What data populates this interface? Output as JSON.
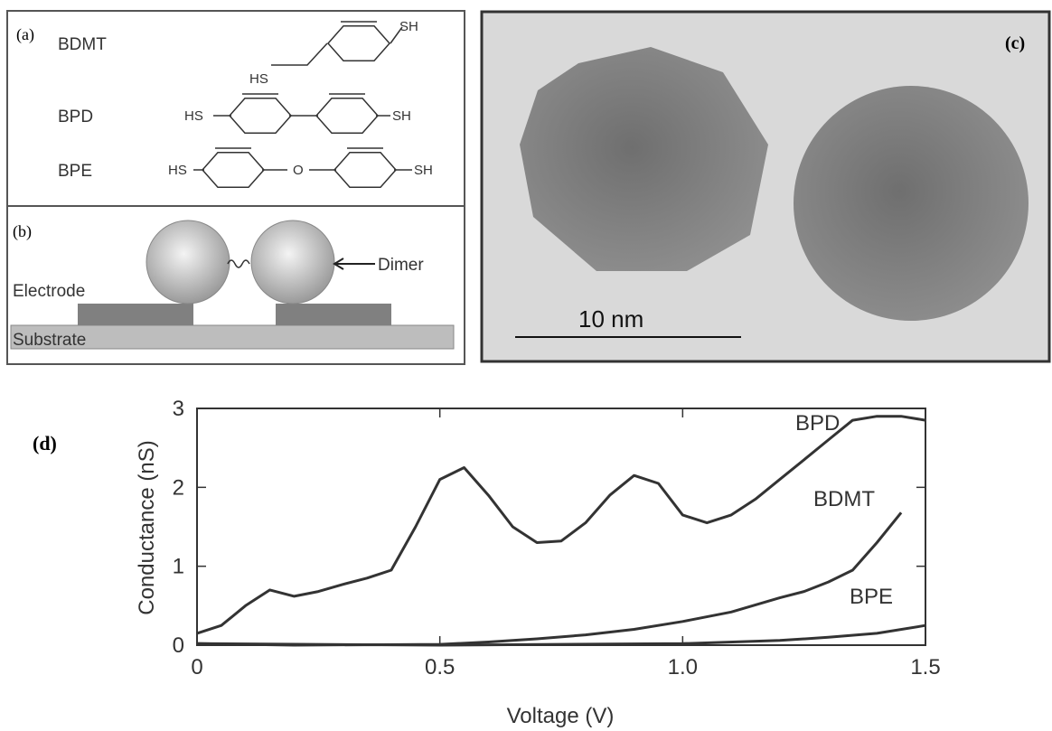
{
  "panel_a": {
    "label": "(a)",
    "molecules": [
      "BDMT",
      "BPD",
      "BPE"
    ],
    "groups": {
      "bdmt_sh": "SH",
      "bdmt_hs": "HS",
      "bpd_hs": "HS",
      "bpd_sh": "SH",
      "bpe_hs": "HS",
      "bpe_o": "O",
      "bpe_sh": "SH"
    }
  },
  "panel_b": {
    "label": "(b)",
    "dimer": "Dimer",
    "electrode": "Electrode",
    "substrate": "Substrate"
  },
  "panel_c": {
    "label": "(c)",
    "scale": "10 nm"
  },
  "panel_d": {
    "label": "(d)"
  },
  "chart_data": {
    "type": "line",
    "xlabel": "Voltage (V)",
    "ylabel": "Conductance (nS)",
    "xlim": [
      0,
      1.5
    ],
    "ylim": [
      0,
      3
    ],
    "xticks": [
      0,
      0.5,
      {
        "value": 1,
        "label": "1.0"
      },
      1.5
    ],
    "yticks": [
      0,
      1,
      2,
      3
    ],
    "series": [
      {
        "name": "BPD",
        "color": "#333333",
        "x": [
          0,
          0.05,
          0.1,
          0.15,
          0.2,
          0.25,
          0.3,
          0.35,
          0.4,
          0.45,
          0.5,
          0.55,
          0.6,
          0.65,
          0.7,
          0.75,
          0.8,
          0.85,
          0.9,
          0.95,
          1.0,
          1.05,
          1.1,
          1.15,
          1.2,
          1.25,
          1.3,
          1.35,
          1.4,
          1.45,
          1.5
        ],
        "values": [
          0.15,
          0.25,
          0.5,
          0.7,
          0.62,
          0.68,
          0.77,
          0.85,
          0.95,
          1.5,
          2.1,
          2.25,
          1.9,
          1.5,
          1.3,
          1.32,
          1.55,
          1.9,
          2.15,
          2.05,
          1.65,
          1.55,
          1.65,
          1.85,
          2.1,
          2.35,
          2.6,
          2.85,
          2.9,
          2.9,
          2.85
        ]
      },
      {
        "name": "BDMT",
        "color": "#333333",
        "x": [
          0,
          0.2,
          0.5,
          0.6,
          0.7,
          0.8,
          0.9,
          1.0,
          1.1,
          1.2,
          1.25,
          1.3,
          1.35,
          1.4,
          1.45
        ],
        "values": [
          0.02,
          0.0,
          0.01,
          0.04,
          0.08,
          0.13,
          0.2,
          0.3,
          0.42,
          0.6,
          0.68,
          0.8,
          0.95,
          1.3,
          1.68
        ]
      },
      {
        "name": "BPE",
        "color": "#333333",
        "x": [
          0,
          0.5,
          1.0,
          1.2,
          1.3,
          1.4,
          1.5
        ],
        "values": [
          0.02,
          0.0,
          0.02,
          0.06,
          0.1,
          0.15,
          0.25
        ]
      }
    ]
  }
}
